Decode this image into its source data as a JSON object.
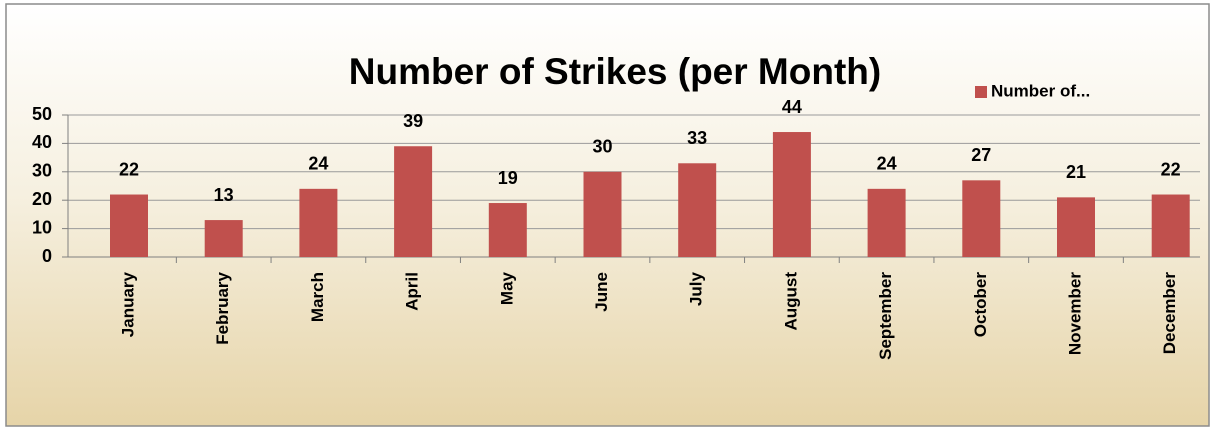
{
  "chart_data": {
    "type": "bar",
    "title": "Number of Strikes (per Month)",
    "categories": [
      "January",
      "February",
      "March",
      "April",
      "May",
      "June",
      "July",
      "August",
      "September",
      "October",
      "November",
      "December"
    ],
    "series": [
      {
        "name": "Number of...",
        "color": "#c0504d",
        "values": [
          22,
          13,
          24,
          39,
          19,
          30,
          33,
          44,
          24,
          27,
          21,
          22
        ]
      }
    ],
    "ylim": [
      0,
      50
    ],
    "yticks": [
      0,
      10,
      20,
      30,
      40,
      50
    ],
    "grid": true,
    "legend": "top-right"
  }
}
